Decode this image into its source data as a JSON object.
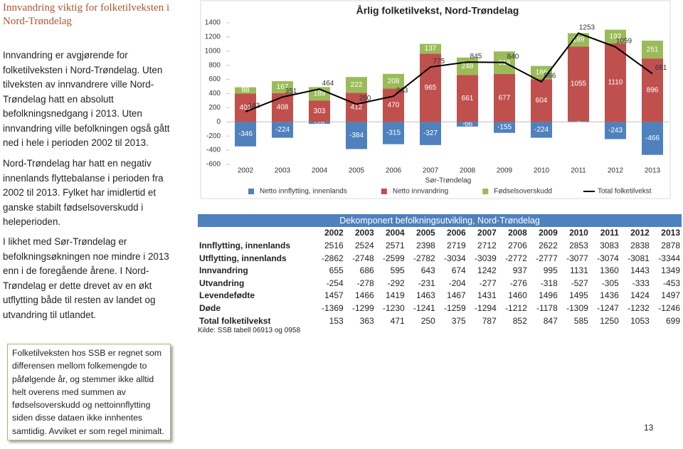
{
  "header": {
    "title": "Innvandring viktig for folketilveksten i Nord-Trøndelag"
  },
  "paragraphs": [
    "Innvandring er avgjørende for folketilveksten i Nord-Trøndelag. Uten tilveksten av innvandrere ville Nord-Trøndelag hatt en absolutt befolkningsnedgang i 2013. Uten innvandring ville befolkningen også gått ned i hele  i perioden 2002 til 2013.",
    "Nord-Trøndelag har hatt en negativ innenlands flyttebalanse i perioden fra 2002 til 2013. Fylket har imidlertid et ganske stabilt fødselsoverskudd i heleperioden.",
    "I likhet med Sør-Trøndelag er befolkningsøkningen noe mindre i 2013 enn i de foregående årene. I Nord-Trøndelag er dette drevet av en økt utflytting både til resten av landet og utvandring til utlandet."
  ],
  "note": "Folketilveksten hos SSB er regnet som differensen mellom folkemengde to påfølgende år, og stemmer ikke alltid helt overens med summen av fødselsoverskudd og nettoinnflytting siden disse dataen ikke innhentes samtidig. Avviket er som regel minimalt.",
  "page_number": 13,
  "chart_data": {
    "type": "bar",
    "stacked": true,
    "title": "Årlig folketilvekst, Nord-Trøndelag",
    "x_label": "Sør-Trøndelag",
    "categories": [
      "2002",
      "2003",
      "2004",
      "2005",
      "2006",
      "2007",
      "2008",
      "2009",
      "2010",
      "2011",
      "2012",
      "2013"
    ],
    "ylim": [
      -600,
      1400
    ],
    "yticks": [
      -600,
      -400,
      -200,
      0,
      200,
      400,
      600,
      800,
      1000,
      1200,
      1400
    ],
    "grid": false,
    "legend": "bottom",
    "series": [
      {
        "name": "Netto innflytting, innenlands",
        "color": "#4f81bd",
        "values": [
          -346,
          -224,
          -28,
          -384,
          -315,
          -327,
          -66,
          -155,
          -224,
          9,
          -243,
          -466
        ]
      },
      {
        "name": "Netto innvandring",
        "color": "#c0504d",
        "values": [
          401,
          408,
          303,
          412,
          470,
          965,
          661,
          677,
          604,
          1055,
          1110,
          896
        ]
      },
      {
        "name": "Fødselsoverskudd",
        "color": "#9bbb59",
        "values": [
          88,
          167,
          189,
          222,
          208,
          137,
          248,
          318,
          186,
          189,
          192,
          251
        ]
      },
      {
        "name": "Total folketilvekst",
        "type": "line",
        "color": "#000000",
        "values": [
          143,
          351,
          464,
          250,
          363,
          775,
          845,
          840,
          566,
          1253,
          1059,
          681
        ]
      }
    ]
  },
  "table": {
    "title": "Dekomponert befolkningsutvikling, Nord-Trøndelag",
    "columns": [
      2002,
      2003,
      2004,
      2005,
      2006,
      2007,
      2008,
      2009,
      2010,
      2011,
      2012,
      2013
    ],
    "rows": [
      {
        "label": "Innflytting, innenlands",
        "values": [
          2516,
          2524,
          2571,
          2398,
          2719,
          2712,
          2706,
          2622,
          2853,
          3083,
          2838,
          2878
        ]
      },
      {
        "label": "Utflytting, innenlands",
        "values": [
          -2862,
          -2748,
          -2599,
          -2782,
          -3034,
          -3039,
          -2772,
          -2777,
          -3077,
          -3074,
          -3081,
          -3344
        ]
      },
      {
        "label": "Innvandring",
        "values": [
          655,
          686,
          595,
          643,
          674,
          1242,
          937,
          995,
          1131,
          1360,
          1443,
          1349
        ]
      },
      {
        "label": "Utvandring",
        "values": [
          -254,
          -278,
          -292,
          -231,
          -204,
          -277,
          -276,
          -318,
          -527,
          -305,
          -333,
          -453
        ]
      },
      {
        "label": "Levendefødte",
        "values": [
          1457,
          1466,
          1419,
          1463,
          1467,
          1431,
          1460,
          1496,
          1495,
          1436,
          1424,
          1497
        ]
      },
      {
        "label": "Døde",
        "values": [
          -1369,
          -1299,
          -1230,
          -1241,
          -1259,
          -1294,
          -1212,
          -1178,
          -1309,
          -1247,
          -1232,
          -1246
        ]
      },
      {
        "label": "Total folketilvekst",
        "values": [
          153,
          363,
          471,
          250,
          375,
          787,
          852,
          847,
          585,
          1250,
          1053,
          699
        ]
      }
    ],
    "source": "Kilde: SSB tabell 06913 og 0958"
  }
}
